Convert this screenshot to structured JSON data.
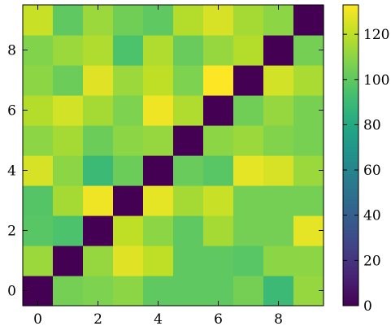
{
  "chart_data": {
    "type": "heatmap",
    "title": "",
    "xlabel": "",
    "ylabel": "",
    "origin": "lower",
    "x_ticks": [
      0,
      2,
      4,
      6,
      8
    ],
    "y_ticks": [
      0,
      2,
      4,
      6,
      8
    ],
    "x_tick_labels": [
      "0",
      "2",
      "4",
      "6",
      "8"
    ],
    "y_tick_labels": [
      "0",
      "2",
      "4",
      "6",
      "8"
    ],
    "colormap": "viridis",
    "colorbar": {
      "vmin": 0,
      "vmax": 133,
      "ticks": [
        0,
        20,
        40,
        60,
        80,
        100,
        120
      ],
      "tick_labels": [
        "0",
        "20",
        "40",
        "60",
        "80",
        "100",
        "120"
      ]
    },
    "values": [
      [
        0,
        105,
        107,
        110,
        100,
        100,
        100,
        105,
        90,
        112
      ],
      [
        113,
        0,
        112,
        127,
        120,
        100,
        100,
        98,
        110,
        110
      ],
      [
        98,
        95,
        0,
        120,
        110,
        100,
        115,
        105,
        105,
        128
      ],
      [
        97,
        115,
        130,
        0,
        128,
        115,
        122,
        105,
        105,
        105
      ],
      [
        125,
        110,
        90,
        103,
        0,
        102,
        98,
        128,
        125,
        113
      ],
      [
        110,
        115,
        103,
        110,
        112,
        0,
        110,
        113,
        108,
        106
      ],
      [
        118,
        124,
        115,
        107,
        130,
        117,
        0,
        104,
        112,
        106
      ],
      [
        110,
        103,
        127,
        113,
        120,
        107,
        133,
        0,
        124,
        116
      ],
      [
        108,
        113,
        117,
        95,
        117,
        102,
        112,
        118,
        0,
        105
      ],
      [
        122,
        100,
        113,
        104,
        100,
        118,
        125,
        115,
        110,
        0
      ]
    ]
  }
}
